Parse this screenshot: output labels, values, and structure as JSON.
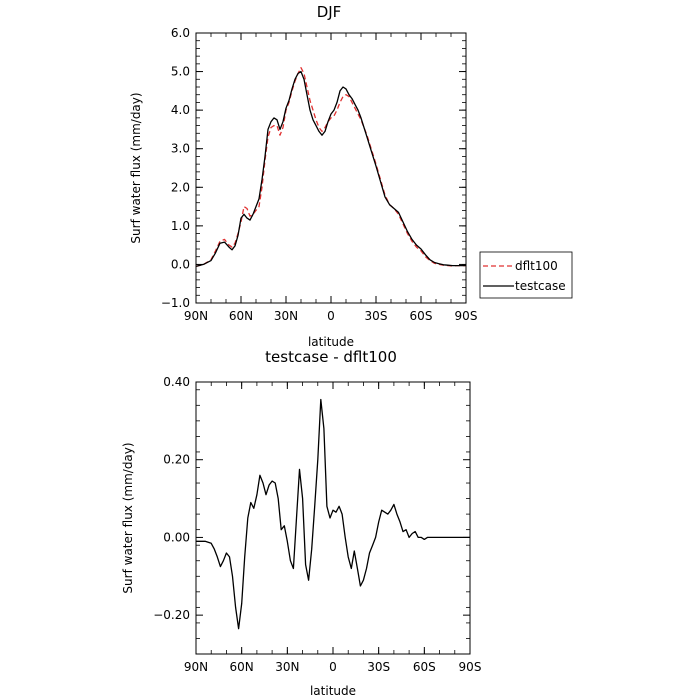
{
  "chart_data": [
    {
      "type": "line",
      "title": "DJF",
      "xlabel": "latitude",
      "ylabel": "Surf water flux (mm/day)",
      "xlim": [
        90,
        -90
      ],
      "ylim": [
        -1.0,
        6.0
      ],
      "x_ticks": [
        90,
        60,
        30,
        0,
        -30,
        -60,
        -90
      ],
      "x_tick_labels": [
        "90N",
        "60N",
        "30N",
        "0",
        "30S",
        "60S",
        "90S"
      ],
      "y_ticks": [
        -1.0,
        0.0,
        1.0,
        2.0,
        3.0,
        4.0,
        5.0,
        6.0
      ],
      "y_tick_labels": [
        "-1.0",
        "0.0",
        "1.0",
        "2.0",
        "3.0",
        "4.0",
        "5.0",
        "6.0"
      ],
      "grid": false,
      "legend": "outside-right",
      "series": [
        {
          "name": "dflt100",
          "color": "#e03030",
          "dash": "dashed",
          "x": [
            90,
            85,
            80,
            77,
            74,
            71,
            68,
            66,
            64,
            62,
            60,
            58,
            56,
            54,
            52,
            50,
            48,
            46,
            44,
            42,
            40,
            38,
            36,
            34,
            32,
            30,
            28,
            26,
            24,
            22,
            20,
            18,
            16,
            14,
            12,
            10,
            8,
            6,
            4,
            2,
            0,
            -2,
            -4,
            -6,
            -8,
            -10,
            -12,
            -14,
            -16,
            -18,
            -20,
            -22,
            -24,
            -26,
            -28,
            -30,
            -33,
            -36,
            -39,
            -42,
            -45,
            -48,
            -51,
            -54,
            -57,
            -60,
            -63,
            -66,
            -69,
            -72,
            -75,
            -78,
            -81,
            -84,
            -87,
            -90
          ],
          "y": [
            -0.05,
            0.0,
            0.12,
            0.35,
            0.6,
            0.65,
            0.5,
            0.45,
            0.55,
            0.8,
            1.1,
            1.5,
            1.45,
            1.25,
            1.3,
            1.4,
            1.5,
            2.0,
            2.7,
            3.3,
            3.55,
            3.6,
            3.6,
            3.35,
            3.55,
            4.0,
            4.2,
            4.5,
            4.75,
            4.95,
            5.1,
            4.95,
            4.6,
            4.25,
            4.0,
            3.75,
            3.55,
            3.45,
            3.55,
            3.7,
            3.8,
            3.85,
            4.0,
            4.2,
            4.35,
            4.4,
            4.35,
            4.2,
            4.05,
            3.9,
            3.75,
            3.55,
            3.35,
            3.1,
            2.85,
            2.6,
            2.2,
            1.8,
            1.55,
            1.45,
            1.3,
            1.05,
            0.8,
            0.6,
            0.45,
            0.35,
            0.2,
            0.1,
            0.03,
            0.0,
            -0.02,
            -0.03,
            -0.04,
            -0.03,
            -0.03,
            -0.03
          ]
        },
        {
          "name": "testcase",
          "color": "#000000",
          "dash": "solid",
          "x": [
            90,
            85,
            80,
            77,
            74,
            71,
            68,
            66,
            64,
            62,
            60,
            58,
            56,
            54,
            52,
            50,
            48,
            46,
            44,
            42,
            40,
            38,
            36,
            34,
            32,
            30,
            28,
            26,
            24,
            22,
            20,
            18,
            16,
            14,
            12,
            10,
            8,
            6,
            4,
            2,
            0,
            -2,
            -4,
            -6,
            -8,
            -10,
            -12,
            -14,
            -16,
            -18,
            -20,
            -22,
            -24,
            -26,
            -28,
            -30,
            -33,
            -36,
            -39,
            -42,
            -45,
            -48,
            -51,
            -54,
            -57,
            -60,
            -63,
            -66,
            -69,
            -72,
            -75,
            -78,
            -81,
            -84,
            -87,
            -90
          ],
          "y": [
            -0.05,
            0.0,
            0.1,
            0.3,
            0.55,
            0.58,
            0.45,
            0.38,
            0.48,
            0.75,
            1.2,
            1.3,
            1.2,
            1.15,
            1.3,
            1.5,
            1.7,
            2.2,
            2.8,
            3.5,
            3.7,
            3.8,
            3.75,
            3.5,
            3.7,
            4.05,
            4.25,
            4.55,
            4.8,
            4.95,
            5.0,
            4.8,
            4.4,
            4.0,
            3.75,
            3.6,
            3.45,
            3.35,
            3.45,
            3.7,
            3.9,
            4.0,
            4.2,
            4.5,
            4.6,
            4.55,
            4.4,
            4.3,
            4.15,
            4.0,
            3.8,
            3.55,
            3.3,
            3.05,
            2.8,
            2.55,
            2.15,
            1.75,
            1.55,
            1.45,
            1.35,
            1.1,
            0.85,
            0.65,
            0.5,
            0.4,
            0.25,
            0.12,
            0.05,
            0.02,
            -0.01,
            -0.02,
            -0.03,
            -0.03,
            -0.03,
            -0.03
          ]
        }
      ]
    },
    {
      "type": "line",
      "title": "testcase - dflt100",
      "xlabel": "latitude",
      "ylabel": "Surf water flux (mm/day)",
      "xlim": [
        90,
        -90
      ],
      "ylim": [
        -0.3,
        0.4
      ],
      "x_ticks": [
        90,
        60,
        30,
        0,
        -30,
        -60,
        -90
      ],
      "x_tick_labels": [
        "90N",
        "60N",
        "30N",
        "0",
        "30S",
        "60S",
        "90S"
      ],
      "y_ticks": [
        -0.2,
        0.0,
        0.2,
        0.4
      ],
      "y_tick_labels": [
        "-0.20",
        "0.00",
        "0.20",
        "0.40"
      ],
      "grid": false,
      "series": [
        {
          "color": "#000000",
          "dash": "solid",
          "x": [
            90,
            84,
            80,
            78,
            76,
            74,
            72,
            70,
            68,
            66,
            64,
            62,
            60,
            58,
            56,
            54,
            52,
            50,
            48,
            46,
            44,
            42,
            40,
            38,
            36,
            34,
            32,
            30,
            28,
            26,
            24,
            22,
            20,
            18,
            16,
            14,
            12,
            10,
            8,
            6,
            4,
            2,
            0,
            -2,
            -4,
            -6,
            -8,
            -10,
            -12,
            -14,
            -16,
            -18,
            -20,
            -22,
            -24,
            -26,
            -28,
            -30,
            -32,
            -34,
            -36,
            -38,
            -40,
            -42,
            -44,
            -46,
            -48,
            -50,
            -52,
            -54,
            -56,
            -58,
            -60,
            -62,
            -64,
            -66,
            -68,
            -70,
            -72,
            -74,
            -76,
            -78,
            -80,
            -82,
            -84,
            -86,
            -88,
            -90
          ],
          "y": [
            -0.01,
            -0.01,
            -0.015,
            -0.03,
            -0.05,
            -0.075,
            -0.06,
            -0.04,
            -0.05,
            -0.1,
            -0.18,
            -0.235,
            -0.17,
            -0.05,
            0.05,
            0.09,
            0.075,
            0.11,
            0.16,
            0.14,
            0.11,
            0.135,
            0.145,
            0.14,
            0.1,
            0.02,
            0.03,
            -0.01,
            -0.06,
            -0.08,
            0.05,
            0.175,
            0.1,
            -0.07,
            -0.11,
            -0.03,
            0.08,
            0.2,
            0.355,
            0.28,
            0.08,
            0.05,
            0.07,
            0.065,
            0.08,
            0.06,
            0.0,
            -0.05,
            -0.08,
            -0.035,
            -0.08,
            -0.125,
            -0.11,
            -0.08,
            -0.04,
            -0.02,
            0.0,
            0.04,
            0.07,
            0.065,
            0.06,
            0.07,
            0.085,
            0.06,
            0.04,
            0.015,
            0.02,
            0.0,
            0.01,
            0.015,
            0.0,
            0.0,
            -0.005,
            0.0,
            0.0,
            0.0,
            0.0,
            0.0,
            0.0,
            0.0,
            0.0,
            0.0,
            0.0,
            0.0,
            0.0,
            0.0,
            0.0,
            0.0
          ]
        }
      ]
    }
  ]
}
